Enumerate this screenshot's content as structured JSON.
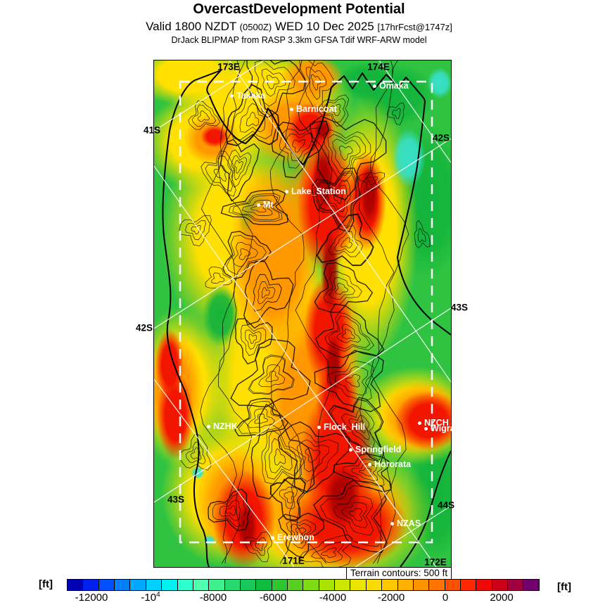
{
  "header": {
    "title": "OvercastDevelopment Potential",
    "valid_prefix": "Valid 1800 NZDT",
    "valid_utc": "(0500Z)",
    "valid_date": "WED 10 Dec 2025",
    "forecast_tag": "[17hrFcst@1747z]",
    "model_line": "DrJack BLIPMAP from RASP 3.3km GFSA Tdif WRF-ARW model"
  },
  "map": {
    "annotation": "Terrain contours: 500 ft",
    "grid_labels": [
      {
        "text": "173E"
      },
      {
        "text": "174E"
      },
      {
        "text": "41S"
      },
      {
        "text": "42S"
      },
      {
        "text": "42S"
      },
      {
        "text": "43S"
      },
      {
        "text": "43S"
      },
      {
        "text": "44S"
      },
      {
        "text": "171E"
      },
      {
        "text": "172E"
      }
    ],
    "stations": [
      {
        "label": "Takaka"
      },
      {
        "label": "Omaka"
      },
      {
        "label": "Barnicoat"
      },
      {
        "label": "Lake_Station"
      },
      {
        "label": "Mt"
      },
      {
        "label": "NZHK"
      },
      {
        "label": "Flock_Hill"
      },
      {
        "label": "Springfield"
      },
      {
        "label": "Hororata"
      },
      {
        "label": "NZCH"
      },
      {
        "label": "Wigram"
      },
      {
        "label": "NZAS"
      },
      {
        "label": "Erewhon"
      }
    ]
  },
  "colorbar": {
    "unit_left": "[ft]",
    "unit_right": "[ft]",
    "ticks": [
      {
        "text": "-12000",
        "sup": ""
      },
      {
        "text": "-10",
        "sup": "4"
      },
      {
        "text": "-8000",
        "sup": ""
      },
      {
        "text": "-6000",
        "sup": ""
      },
      {
        "text": "-4000",
        "sup": ""
      },
      {
        "text": "-2000",
        "sup": ""
      },
      {
        "text": "0",
        "sup": ""
      },
      {
        "text": "2000",
        "sup": ""
      }
    ],
    "colors": [
      "#0000b4",
      "#0020f0",
      "#0050ff",
      "#0080ff",
      "#00a8ff",
      "#00d0ff",
      "#00f0f0",
      "#30ffd0",
      "#50ffb0",
      "#40f090",
      "#28d870",
      "#18c858",
      "#10bc40",
      "#30c430",
      "#58d020",
      "#80dc10",
      "#a8e400",
      "#cce800",
      "#e8e600",
      "#f8dc00",
      "#ffc800",
      "#ffb000",
      "#ff9400",
      "#ff7400",
      "#ff5000",
      "#ff2800",
      "#f00808",
      "#cc0018",
      "#a00040",
      "#700070"
    ]
  }
}
